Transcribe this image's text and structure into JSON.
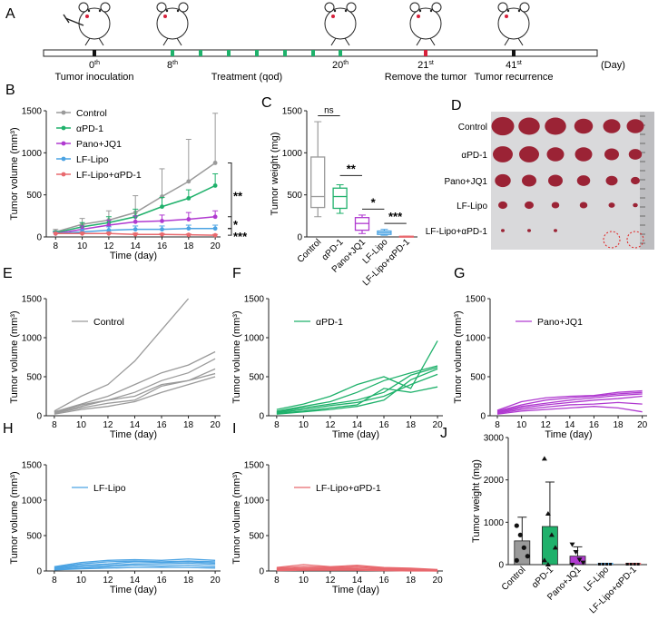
{
  "colors": {
    "control": "#9a9a9a",
    "apd1": "#1fb16b",
    "pano": "#b03ad0",
    "lflipo": "#4ba3e3",
    "lflipoapd1": "#e8696e",
    "axis": "#222222"
  },
  "panels": {
    "A": "A",
    "B": "B",
    "C": "C",
    "D": "D",
    "E": "E",
    "F": "F",
    "G": "G",
    "H": "H",
    "I": "I",
    "J": "J"
  },
  "timeline": {
    "day_unit": "(Day)",
    "events": [
      {
        "label": "Tumor inoculation",
        "day": "0",
        "sup": "th"
      },
      {
        "label": "",
        "day": "8",
        "sup": "th"
      },
      {
        "label": "Treatment (qod)",
        "day": "",
        "sup": ""
      },
      {
        "label": "",
        "day": "20",
        "sup": "th"
      },
      {
        "label": "Remove the tumor",
        "day": "21",
        "sup": "st"
      },
      {
        "label": "Tumor recurrence",
        "day": "41",
        "sup": "st"
      }
    ]
  },
  "photo": {
    "rows": [
      "Control",
      "αPD-1",
      "Pano+JQ1",
      "LF-Lipo",
      "LF-Lipo+αPD-1"
    ],
    "sizes": [
      [
        16,
        15,
        15,
        13,
        12,
        12
      ],
      [
        14,
        14,
        12,
        12,
        10,
        9
      ],
      [
        11,
        10,
        10,
        9,
        8,
        6
      ],
      [
        6,
        6,
        5,
        5,
        4,
        3
      ],
      [
        2,
        2,
        2,
        0,
        0,
        0
      ]
    ],
    "tumor_color": "#9b2335",
    "circle_color": "#e02020"
  },
  "chart_data": [
    {
      "id": "B",
      "type": "line",
      "title": "",
      "xlabel": "Time (day)",
      "ylabel": "Tumor volume (mm³)",
      "x": [
        8,
        10,
        12,
        14,
        16,
        18,
        20
      ],
      "xlim": [
        8,
        20
      ],
      "ylim": [
        0,
        1500
      ],
      "yticks": [
        0,
        500,
        1000,
        1500
      ],
      "legend": "top-left",
      "series": [
        {
          "name": "Control",
          "color": "#9a9a9a",
          "values": [
            60,
            150,
            200,
            290,
            480,
            660,
            880
          ],
          "err": [
            30,
            70,
            110,
            200,
            330,
            500,
            590
          ]
        },
        {
          "name": "αPD-1",
          "color": "#1fb16b",
          "values": [
            50,
            120,
            170,
            240,
            360,
            460,
            610
          ],
          "err": [
            20,
            50,
            70,
            90,
            110,
            100,
            140
          ]
        },
        {
          "name": "Pano+JQ1",
          "color": "#b03ad0",
          "values": [
            40,
            90,
            140,
            180,
            190,
            210,
            240
          ],
          "err": [
            20,
            40,
            60,
            70,
            70,
            80,
            70
          ]
        },
        {
          "name": "LF-Lipo",
          "color": "#4ba3e3",
          "values": [
            40,
            60,
            80,
            90,
            90,
            100,
            100
          ],
          "err": [
            20,
            30,
            40,
            40,
            40,
            40,
            40
          ]
        },
        {
          "name": "LF-Lipo+αPD-1",
          "color": "#e8696e",
          "values": [
            40,
            40,
            40,
            30,
            30,
            25,
            20
          ],
          "err": [
            10,
            15,
            15,
            15,
            10,
            10,
            10
          ]
        }
      ],
      "significance": [
        "**",
        "*",
        "***"
      ]
    },
    {
      "id": "C",
      "type": "box",
      "xlabel": "",
      "ylabel": "Tumor weight (mg)",
      "ylim": [
        0,
        1500
      ],
      "yticks": [
        0,
        500,
        1000,
        1500
      ],
      "categories": [
        "Control",
        "αPD-1",
        "Pano+JQ1",
        "LF-Lipo",
        "LF-Lipo+αPD-1"
      ],
      "boxes": [
        {
          "name": "Control",
          "color": "#9a9a9a",
          "min": 240,
          "q1": 350,
          "median": 480,
          "q3": 950,
          "max": 1370
        },
        {
          "name": "αPD-1",
          "color": "#1fb16b",
          "min": 280,
          "q1": 340,
          "median": 480,
          "q3": 580,
          "max": 620
        },
        {
          "name": "Pano+JQ1",
          "color": "#b03ad0",
          "min": 40,
          "q1": 80,
          "median": 160,
          "q3": 230,
          "max": 260
        },
        {
          "name": "LF-Lipo",
          "color": "#4ba3e3",
          "min": 20,
          "q1": 30,
          "median": 50,
          "q3": 70,
          "max": 90
        },
        {
          "name": "LF-Lipo+αPD-1",
          "color": "#e8696e",
          "min": 0,
          "q1": 2,
          "median": 5,
          "q3": 8,
          "max": 10
        }
      ],
      "significance": [
        "ns",
        "**",
        "*",
        "***"
      ]
    },
    {
      "id": "E",
      "type": "line",
      "label": "Control",
      "color": "#9a9a9a",
      "xlabel": "Time (day)",
      "ylabel": "Tumor volume (mm³)",
      "x": [
        8,
        10,
        12,
        14,
        16,
        18,
        20
      ],
      "ylim": [
        0,
        1500
      ],
      "yticks": [
        0,
        500,
        1000,
        1500
      ],
      "series": [
        [
          60,
          250,
          400,
          700,
          1100,
          1500,
          null
        ],
        [
          50,
          150,
          250,
          400,
          550,
          650,
          820
        ],
        [
          40,
          120,
          200,
          300,
          450,
          550,
          730
        ],
        [
          50,
          140,
          200,
          250,
          400,
          450,
          600
        ],
        [
          30,
          100,
          160,
          200,
          380,
          450,
          540
        ],
        [
          20,
          80,
          120,
          180,
          300,
          400,
          500
        ]
      ]
    },
    {
      "id": "F",
      "type": "line",
      "label": "αPD-1",
      "color": "#1fb16b",
      "xlabel": "Time (day)",
      "ylabel": "Tumor volume (mm³)",
      "x": [
        8,
        10,
        12,
        14,
        16,
        18,
        20
      ],
      "ylim": [
        0,
        1500
      ],
      "yticks": [
        0,
        500,
        1000,
        1500
      ],
      "series": [
        [
          80,
          150,
          250,
          400,
          500,
          350,
          960
        ],
        [
          60,
          120,
          180,
          300,
          450,
          550,
          640
        ],
        [
          50,
          100,
          150,
          200,
          300,
          520,
          620
        ],
        [
          40,
          80,
          130,
          170,
          250,
          400,
          530
        ],
        [
          30,
          60,
          100,
          140,
          350,
          300,
          370
        ],
        [
          20,
          50,
          80,
          120,
          200,
          460,
          600
        ]
      ]
    },
    {
      "id": "G",
      "type": "line",
      "label": "Pano+JQ1",
      "color": "#b03ad0",
      "xlabel": "Time (day)",
      "ylabel": "Tumor volume (mm³)",
      "x": [
        8,
        10,
        12,
        14,
        16,
        18,
        20
      ],
      "ylim": [
        0,
        1500
      ],
      "yticks": [
        0,
        500,
        1000,
        1500
      ],
      "series": [
        [
          70,
          180,
          230,
          250,
          260,
          300,
          320
        ],
        [
          60,
          140,
          200,
          230,
          250,
          280,
          300
        ],
        [
          50,
          120,
          160,
          200,
          230,
          260,
          280
        ],
        [
          40,
          100,
          140,
          170,
          200,
          220,
          250
        ],
        [
          30,
          80,
          110,
          140,
          150,
          170,
          150
        ],
        [
          20,
          60,
          80,
          100,
          120,
          100,
          50
        ]
      ]
    },
    {
      "id": "H",
      "type": "line",
      "label": "LF-Lipo",
      "color": "#4ba3e3",
      "xlabel": "Time (day)",
      "ylabel": "Tumor volume (mm³)",
      "x": [
        8,
        10,
        12,
        14,
        16,
        18,
        20
      ],
      "ylim": [
        0,
        1500
      ],
      "yticks": [
        0,
        500,
        1000,
        1500
      ],
      "series": [
        [
          60,
          120,
          150,
          160,
          150,
          170,
          150
        ],
        [
          50,
          100,
          130,
          140,
          130,
          140,
          130
        ],
        [
          40,
          80,
          100,
          130,
          120,
          130,
          110
        ],
        [
          30,
          60,
          80,
          100,
          100,
          110,
          90
        ],
        [
          20,
          40,
          60,
          80,
          70,
          80,
          60
        ],
        [
          15,
          30,
          40,
          50,
          50,
          50,
          40
        ]
      ]
    },
    {
      "id": "I",
      "type": "line",
      "label": "LF-Lipo+αPD-1",
      "color": "#e8696e",
      "xlabel": "Time (day)",
      "ylabel": "Tumor volume (mm³)",
      "x": [
        8,
        10,
        12,
        14,
        16,
        18,
        20
      ],
      "ylim": [
        0,
        1500
      ],
      "yticks": [
        0,
        500,
        1000,
        1500
      ],
      "series": [
        [
          50,
          90,
          60,
          80,
          50,
          40,
          20
        ],
        [
          40,
          60,
          50,
          70,
          40,
          30,
          10
        ],
        [
          30,
          40,
          40,
          50,
          30,
          20,
          5
        ],
        [
          20,
          30,
          30,
          30,
          20,
          10,
          0
        ],
        [
          10,
          20,
          20,
          20,
          10,
          5,
          0
        ],
        [
          5,
          10,
          10,
          10,
          5,
          0,
          0
        ]
      ]
    },
    {
      "id": "J",
      "type": "bar",
      "xlabel": "",
      "ylabel": "Tumor weight (mg)",
      "ylim": [
        0,
        3000
      ],
      "yticks": [
        0,
        1000,
        2000,
        3000
      ],
      "categories": [
        "Control",
        "αPD-1",
        "Pano+JQ1",
        "LF-Lipo",
        "LF-Lipo+αPD-1"
      ],
      "values": [
        560,
        900,
        200,
        0,
        0
      ],
      "err": [
        560,
        1050,
        220,
        0,
        0
      ],
      "colors": [
        "#9a9a9a",
        "#1fb16b",
        "#b03ad0",
        "#4ba3e3",
        "#e8696e"
      ],
      "points": [
        [
          920,
          700,
          400,
          200,
          100
        ],
        [
          2500,
          1200,
          700,
          400,
          100,
          0
        ],
        [
          480,
          300,
          120,
          50,
          0
        ],
        [
          0,
          0,
          0,
          0,
          0
        ],
        [
          0,
          0,
          0,
          0,
          0
        ]
      ]
    }
  ]
}
